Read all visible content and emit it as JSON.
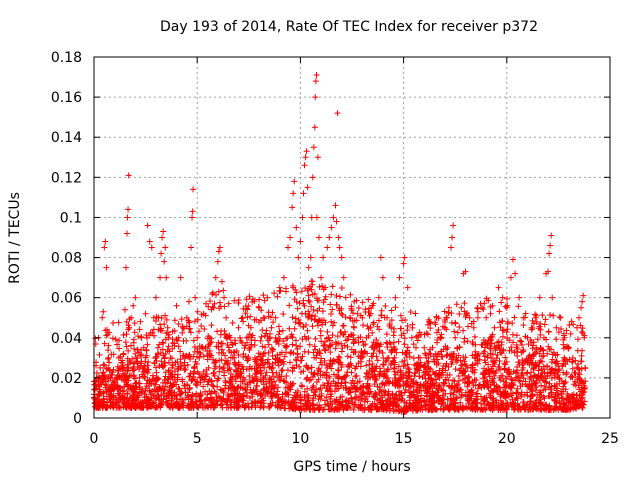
{
  "chart_data": {
    "type": "scatter",
    "title": "Day 193 of 2014, Rate Of TEC Index for receiver p372",
    "xlabel": "GPS time / hours",
    "ylabel": "ROTI / TECUs",
    "xlim": [
      0,
      25
    ],
    "ylim": [
      0,
      0.18
    ],
    "xticks": [
      0,
      5,
      10,
      15,
      20,
      25
    ],
    "xtick_labels": [
      "0",
      "5",
      "10",
      "15",
      "20",
      "25"
    ],
    "yticks": [
      0,
      0.02,
      0.04,
      0.06,
      0.08,
      0.1,
      0.12,
      0.14,
      0.16,
      0.18
    ],
    "ytick_labels": [
      "0",
      "0.02",
      "0.04",
      "0.06",
      "0.08",
      "0.1",
      "0.12",
      "0.14",
      "0.16",
      "0.18"
    ],
    "grid": true,
    "marker": "+",
    "color": "#ff0000",
    "series": [
      {
        "name": "ROTI",
        "points": [
          [
            0.2,
            0.012
          ],
          [
            0.3,
            0.025
          ],
          [
            0.4,
            0.05
          ],
          [
            0.45,
            0.053
          ],
          [
            0.5,
            0.085
          ],
          [
            0.55,
            0.088
          ],
          [
            0.6,
            0.075
          ],
          [
            0.7,
            0.03
          ],
          [
            0.8,
            0.02
          ],
          [
            0.9,
            0.015
          ],
          [
            1.0,
            0.018
          ],
          [
            1.1,
            0.02
          ],
          [
            1.2,
            0.03
          ],
          [
            1.4,
            0.022
          ],
          [
            1.5,
            0.054
          ],
          [
            1.55,
            0.075
          ],
          [
            1.6,
            0.092
          ],
          [
            1.62,
            0.1
          ],
          [
            1.65,
            0.104
          ],
          [
            1.68,
            0.121
          ],
          [
            1.7,
            0.045
          ],
          [
            1.8,
            0.05
          ],
          [
            1.9,
            0.056
          ],
          [
            2.0,
            0.06
          ],
          [
            2.1,
            0.03
          ],
          [
            2.2,
            0.02
          ],
          [
            2.3,
            0.04
          ],
          [
            2.4,
            0.025
          ],
          [
            2.5,
            0.052
          ],
          [
            2.6,
            0.096
          ],
          [
            2.7,
            0.088
          ],
          [
            2.8,
            0.085
          ],
          [
            2.9,
            0.05
          ],
          [
            3.0,
            0.06
          ],
          [
            3.1,
            0.035
          ],
          [
            3.2,
            0.07
          ],
          [
            3.25,
            0.082
          ],
          [
            3.3,
            0.09
          ],
          [
            3.35,
            0.093
          ],
          [
            3.4,
            0.078
          ],
          [
            3.45,
            0.085
          ],
          [
            3.5,
            0.07
          ],
          [
            3.6,
            0.04
          ],
          [
            3.7,
            0.03
          ],
          [
            3.8,
            0.02
          ],
          [
            3.9,
            0.036
          ],
          [
            4.0,
            0.056
          ],
          [
            4.1,
            0.04
          ],
          [
            4.2,
            0.07
          ],
          [
            4.3,
            0.045
          ],
          [
            4.4,
            0.03
          ],
          [
            4.5,
            0.05
          ],
          [
            4.6,
            0.058
          ],
          [
            4.7,
            0.085
          ],
          [
            4.75,
            0.1
          ],
          [
            4.78,
            0.103
          ],
          [
            4.8,
            0.114
          ],
          [
            4.9,
            0.06
          ],
          [
            5.0,
            0.04
          ],
          [
            5.1,
            0.03
          ],
          [
            5.2,
            0.02
          ],
          [
            5.4,
            0.035
          ],
          [
            5.6,
            0.04
          ],
          [
            5.8,
            0.055
          ],
          [
            5.9,
            0.07
          ],
          [
            6.0,
            0.078
          ],
          [
            6.05,
            0.083
          ],
          [
            6.1,
            0.085
          ],
          [
            6.2,
            0.068
          ],
          [
            6.3,
            0.06
          ],
          [
            6.4,
            0.05
          ],
          [
            6.6,
            0.04
          ],
          [
            6.8,
            0.03
          ],
          [
            7.0,
            0.045
          ],
          [
            7.2,
            0.05
          ],
          [
            7.4,
            0.04
          ],
          [
            7.6,
            0.045
          ],
          [
            7.8,
            0.03
          ],
          [
            8.0,
            0.055
          ],
          [
            8.2,
            0.05
          ],
          [
            8.4,
            0.06
          ],
          [
            8.6,
            0.045
          ],
          [
            8.8,
            0.05
          ],
          [
            9.0,
            0.065
          ],
          [
            9.2,
            0.07
          ],
          [
            9.4,
            0.085
          ],
          [
            9.5,
            0.09
          ],
          [
            9.6,
            0.105
          ],
          [
            9.65,
            0.112
          ],
          [
            9.7,
            0.118
          ],
          [
            9.8,
            0.095
          ],
          [
            9.9,
            0.08
          ],
          [
            10.0,
            0.088
          ],
          [
            10.1,
            0.1
          ],
          [
            10.15,
            0.112
          ],
          [
            10.2,
            0.126
          ],
          [
            10.25,
            0.13
          ],
          [
            10.3,
            0.133
          ],
          [
            10.35,
            0.115
          ],
          [
            10.4,
            0.075
          ],
          [
            10.5,
            0.08
          ],
          [
            10.55,
            0.1
          ],
          [
            10.6,
            0.12
          ],
          [
            10.65,
            0.135
          ],
          [
            10.7,
            0.145
          ],
          [
            10.72,
            0.16
          ],
          [
            10.75,
            0.168
          ],
          [
            10.78,
            0.171
          ],
          [
            10.8,
            0.1
          ],
          [
            10.85,
            0.13
          ],
          [
            10.9,
            0.09
          ],
          [
            11.0,
            0.07
          ],
          [
            11.1,
            0.08
          ],
          [
            11.2,
            0.065
          ],
          [
            11.3,
            0.085
          ],
          [
            11.4,
            0.09
          ],
          [
            11.5,
            0.095
          ],
          [
            11.6,
            0.1
          ],
          [
            11.7,
            0.106
          ],
          [
            11.75,
            0.098
          ],
          [
            11.8,
            0.152
          ],
          [
            11.85,
            0.09
          ],
          [
            11.9,
            0.085
          ],
          [
            12.0,
            0.08
          ],
          [
            12.1,
            0.07
          ],
          [
            12.2,
            0.06
          ],
          [
            12.4,
            0.05
          ],
          [
            12.6,
            0.045
          ],
          [
            12.8,
            0.04
          ],
          [
            13.0,
            0.05
          ],
          [
            13.2,
            0.04
          ],
          [
            13.4,
            0.045
          ],
          [
            13.6,
            0.035
          ],
          [
            13.8,
            0.06
          ],
          [
            13.9,
            0.08
          ],
          [
            14.0,
            0.07
          ],
          [
            14.2,
            0.05
          ],
          [
            14.4,
            0.045
          ],
          [
            14.6,
            0.06
          ],
          [
            14.8,
            0.07
          ],
          [
            15.0,
            0.077
          ],
          [
            15.05,
            0.08
          ],
          [
            15.2,
            0.065
          ],
          [
            15.4,
            0.04
          ],
          [
            15.6,
            0.035
          ],
          [
            15.8,
            0.03
          ],
          [
            16.0,
            0.035
          ],
          [
            16.2,
            0.03
          ],
          [
            16.4,
            0.035
          ],
          [
            16.6,
            0.05
          ],
          [
            16.8,
            0.04
          ],
          [
            17.0,
            0.045
          ],
          [
            17.1,
            0.05
          ],
          [
            17.2,
            0.055
          ],
          [
            17.3,
            0.085
          ],
          [
            17.35,
            0.09
          ],
          [
            17.4,
            0.096
          ],
          [
            17.5,
            0.04
          ],
          [
            17.6,
            0.035
          ],
          [
            17.8,
            0.055
          ],
          [
            17.9,
            0.072
          ],
          [
            18.0,
            0.073
          ],
          [
            18.2,
            0.05
          ],
          [
            18.4,
            0.045
          ],
          [
            18.6,
            0.05
          ],
          [
            18.8,
            0.055
          ],
          [
            19.0,
            0.05
          ],
          [
            19.2,
            0.04
          ],
          [
            19.4,
            0.045
          ],
          [
            19.6,
            0.065
          ],
          [
            19.8,
            0.06
          ],
          [
            20.0,
            0.055
          ],
          [
            20.2,
            0.07
          ],
          [
            20.3,
            0.079
          ],
          [
            20.4,
            0.072
          ],
          [
            20.6,
            0.06
          ],
          [
            20.8,
            0.05
          ],
          [
            21.0,
            0.04
          ],
          [
            21.2,
            0.045
          ],
          [
            21.4,
            0.05
          ],
          [
            21.6,
            0.06
          ],
          [
            21.8,
            0.04
          ],
          [
            21.9,
            0.072
          ],
          [
            22.0,
            0.073
          ],
          [
            22.05,
            0.082
          ],
          [
            22.1,
            0.086
          ],
          [
            22.15,
            0.091
          ],
          [
            22.2,
            0.06
          ],
          [
            22.4,
            0.045
          ],
          [
            22.6,
            0.05
          ],
          [
            22.8,
            0.04
          ],
          [
            23.0,
            0.035
          ],
          [
            23.2,
            0.03
          ],
          [
            23.4,
            0.045
          ],
          [
            23.5,
            0.05
          ],
          [
            23.6,
            0.055
          ],
          [
            23.65,
            0.058
          ],
          [
            23.7,
            0.061
          ],
          [
            23.75,
            0.04
          ],
          [
            23.8,
            0.025
          ]
        ],
        "density_band": {
          "note": "dense cluster of points near the baseline",
          "x": [
            0.0,
            1.0,
            2.0,
            3.0,
            4.0,
            5.0,
            6.0,
            7.0,
            8.0,
            9.0,
            10.0,
            11.0,
            12.0,
            13.0,
            14.0,
            15.0,
            16.0,
            17.0,
            18.0,
            19.0,
            20.0,
            21.0,
            22.0,
            23.0,
            23.8
          ],
          "y_low": [
            0.005,
            0.005,
            0.005,
            0.005,
            0.005,
            0.005,
            0.005,
            0.005,
            0.005,
            0.005,
            0.004,
            0.004,
            0.004,
            0.004,
            0.004,
            0.003,
            0.004,
            0.004,
            0.004,
            0.004,
            0.004,
            0.004,
            0.004,
            0.004,
            0.005
          ],
          "y_high": [
            0.02,
            0.028,
            0.03,
            0.032,
            0.03,
            0.035,
            0.045,
            0.04,
            0.042,
            0.045,
            0.05,
            0.05,
            0.045,
            0.04,
            0.038,
            0.035,
            0.03,
            0.035,
            0.04,
            0.04,
            0.04,
            0.035,
            0.035,
            0.03,
            0.025
          ]
        }
      }
    ]
  }
}
